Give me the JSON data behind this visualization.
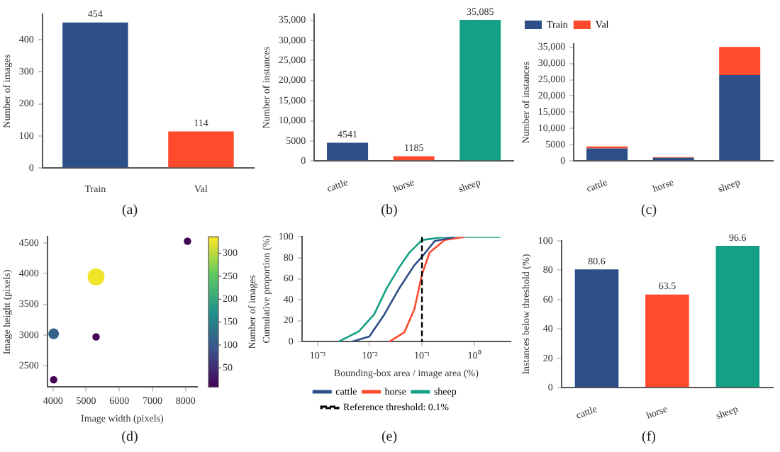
{
  "chart_data": [
    {
      "type": "bar",
      "ylabel": "Number of images",
      "categories": [
        "Train",
        "Val"
      ],
      "values": [
        454,
        114
      ],
      "colors": [
        "#2b4f86",
        "#ff4a2e"
      ],
      "ylim": [
        0,
        480
      ],
      "yticks": [
        0,
        100,
        200,
        300,
        400
      ],
      "data_labels": true,
      "annotations": [
        "(a)"
      ]
    },
    {
      "type": "bar",
      "ylabel": "Number of instances",
      "categories": [
        "cattle",
        "horse",
        "sheep"
      ],
      "values": [
        4541,
        1185,
        35085
      ],
      "colors": [
        "#2b4f86",
        "#ff4a2e",
        "#14a085"
      ],
      "value_labels": [
        "4541",
        "1185",
        "35,085"
      ],
      "ylim": [
        0,
        36500
      ],
      "yticks": [
        0,
        5000,
        {
          "value": 10000,
          "label": "10,000"
        },
        {
          "value": 15000,
          "label": "15,000"
        },
        {
          "value": 20000,
          "label": "20,000"
        },
        {
          "value": 25000,
          "label": "25,000"
        },
        {
          "value": 30000,
          "label": "30,000"
        },
        {
          "value": 35000,
          "label": "35,000"
        }
      ],
      "annotations": [
        "(b)"
      ]
    },
    {
      "type": "bar",
      "stacked": true,
      "ylabel": "Number of instances",
      "categories": [
        "cattle",
        "horse",
        "sheep"
      ],
      "series": [
        {
          "name": "Train",
          "color": "#2b4f86",
          "values": [
            3900,
            1000,
            26400
          ]
        },
        {
          "name": "Val",
          "color": "#ff4a2e",
          "values": [
            600,
            200,
            8700
          ]
        }
      ],
      "legend": "top left",
      "ylim": [
        0,
        36000
      ],
      "yticks": [
        0,
        5000,
        {
          "value": 10000,
          "label": "10,000"
        },
        {
          "value": 15000,
          "label": "15,000"
        },
        {
          "value": 20000,
          "label": "20,000"
        },
        {
          "value": 25000,
          "label": "25,000"
        },
        {
          "value": 30000,
          "label": "30,000"
        },
        {
          "value": 35000,
          "label": "35,000"
        }
      ],
      "annotations": [
        "(c)"
      ]
    },
    {
      "type": "scatter",
      "xlabel": "Image width (pixels)",
      "ylabel": "Image height (pixels)",
      "clabel": "Number of images",
      "x": [
        4020,
        4020,
        5300,
        5300,
        8060
      ],
      "values": [
        2270,
        3020,
        3950,
        2970,
        4530
      ],
      "sizes": [
        0.19,
        0.39,
        1,
        0.19,
        0.19
      ],
      "cvalues": [
        12,
        110,
        330,
        12,
        12
      ],
      "marker": "circle",
      "xlim": [
        3830,
        8350
      ],
      "xticks": [
        4000,
        5000,
        6000,
        7000,
        8000
      ],
      "ylim": [
        2150,
        4600
      ],
      "yticks": [
        2500,
        3000,
        3500,
        4000,
        4500
      ],
      "clim": [
        8,
        336
      ],
      "cticks": [
        50,
        100,
        150,
        200,
        250,
        300
      ],
      "annotations": [
        "(d)"
      ]
    },
    {
      "type": "line",
      "log": "x",
      "marker": "none",
      "xlabel": "Bounding-box area / image area (%)",
      "ylabel": "Cumulative proportion (%)",
      "series": [
        {
          "name": "cattle",
          "color": "#2b4f86",
          "x": [
            0.0045,
            0.0098,
            0.019,
            0.0367,
            0.0716,
            0.1,
            0.175,
            0.43
          ],
          "values": [
            0,
            5,
            26,
            51,
            73,
            81,
            96,
            100
          ]
        },
        {
          "name": "horse",
          "color": "#ff4a2e",
          "x": [
            0.0235,
            0.046,
            0.0716,
            0.1,
            0.14,
            0.272,
            0.66
          ],
          "values": [
            0,
            9,
            31,
            64,
            85,
            97,
            100
          ]
        },
        {
          "name": "sheep",
          "color": "#14a085",
          "x": [
            0.0025,
            0.0062,
            0.0121,
            0.0211,
            0.0367,
            0.0573,
            0.1,
            0.272,
            3.2
          ],
          "values": [
            0,
            10,
            26,
            51,
            71,
            85,
            97,
            100,
            100
          ]
        }
      ],
      "ref_lines": [
        {
          "axis": "x",
          "value": 0.1,
          "label": "Reference threshold: 0.1%",
          "color": "#000000",
          "line_style": "dashed"
        }
      ],
      "legend": "bottom",
      "xlim": [
        0.0005,
        5
      ],
      "xticks": [
        {
          "value": 0.001,
          "label": "10⁻³"
        },
        {
          "value": 0.01,
          "label": "10⁻²"
        },
        {
          "value": 0.1,
          "label": "10⁻¹"
        },
        {
          "value": 1,
          "label": "10⁰"
        }
      ],
      "ylim": [
        0,
        100
      ],
      "yticks": [
        0,
        20,
        40,
        60,
        80,
        100
      ],
      "annotations": [
        "(e)"
      ]
    },
    {
      "type": "bar",
      "ylabel": "Instances below threshold (%)",
      "categories": [
        "cattle",
        "horse",
        "sheep"
      ],
      "values": [
        80.6,
        63.5,
        96.6
      ],
      "colors": [
        "#2b4f86",
        "#ff4a2e",
        "#14a085"
      ],
      "data_labels": true,
      "ylim": [
        0,
        100
      ],
      "yticks": [
        0,
        20,
        40,
        60,
        80,
        100
      ],
      "annotations": [
        "(f)"
      ]
    }
  ]
}
